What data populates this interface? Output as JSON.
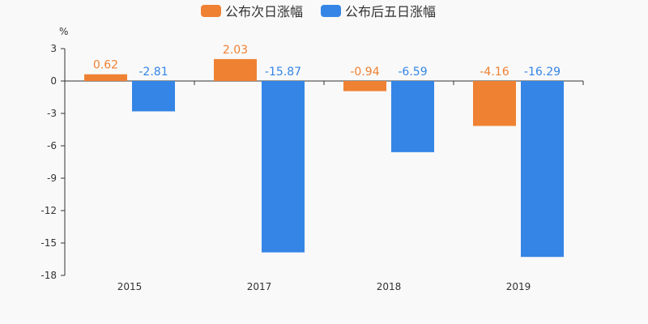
{
  "chart_data": {
    "type": "bar",
    "title": "",
    "xlabel": "",
    "ylabel": "%",
    "ylim": [
      -18,
      3
    ],
    "yticks": [
      3,
      0,
      -3,
      -6,
      -9,
      -12,
      -15,
      -18
    ],
    "categories": [
      "2015",
      "2017",
      "2018",
      "2019"
    ],
    "legend_position": "top-center",
    "grid": false,
    "series": [
      {
        "name": "公布次日涨幅",
        "color": "#ef8133",
        "values": [
          0.62,
          2.03,
          -0.94,
          -4.16
        ],
        "labels": [
          "0.62",
          "2.03",
          "-0.94",
          "-4.16"
        ]
      },
      {
        "name": "公布后五日涨幅",
        "color": "#3585e6",
        "values": [
          -2.81,
          -15.87,
          -6.59,
          -16.29
        ],
        "labels": [
          "-2.81",
          "-15.87",
          "-6.59",
          "-16.29"
        ]
      }
    ]
  }
}
